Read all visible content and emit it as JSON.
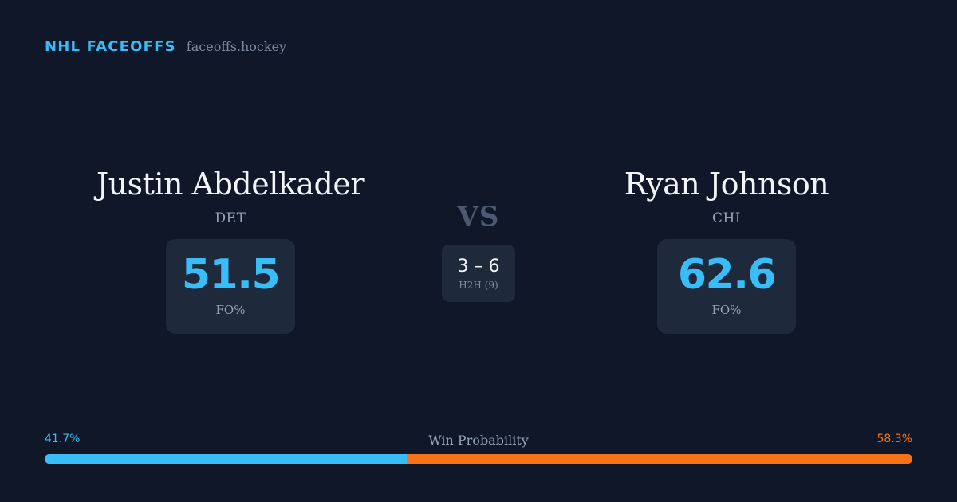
{
  "brand": {
    "name": "NHL FACEOFFS",
    "domain": "faceoffs.hockey"
  },
  "players": {
    "left": {
      "name": "Justin Abdelkader",
      "team": "DET",
      "stat_value": "51.5",
      "stat_label": "FO%"
    },
    "right": {
      "name": "Ryan Johnson",
      "team": "CHI",
      "stat_value": "62.6",
      "stat_label": "FO%"
    }
  },
  "versus": {
    "label": "VS",
    "h2h_score": "3 – 6",
    "h2h_label": "H2H (9)"
  },
  "win_probability": {
    "title": "Win Probability",
    "left_label": "41.7%",
    "right_label": "58.3%",
    "left_fraction": 0.417,
    "right_fraction": 0.583,
    "left_color": "#38bdf8",
    "right_color": "#f97316"
  },
  "colors": {
    "background": "#0f1729",
    "card": "#1e293b",
    "accent": "#38bdf8",
    "orange": "#f97316"
  }
}
